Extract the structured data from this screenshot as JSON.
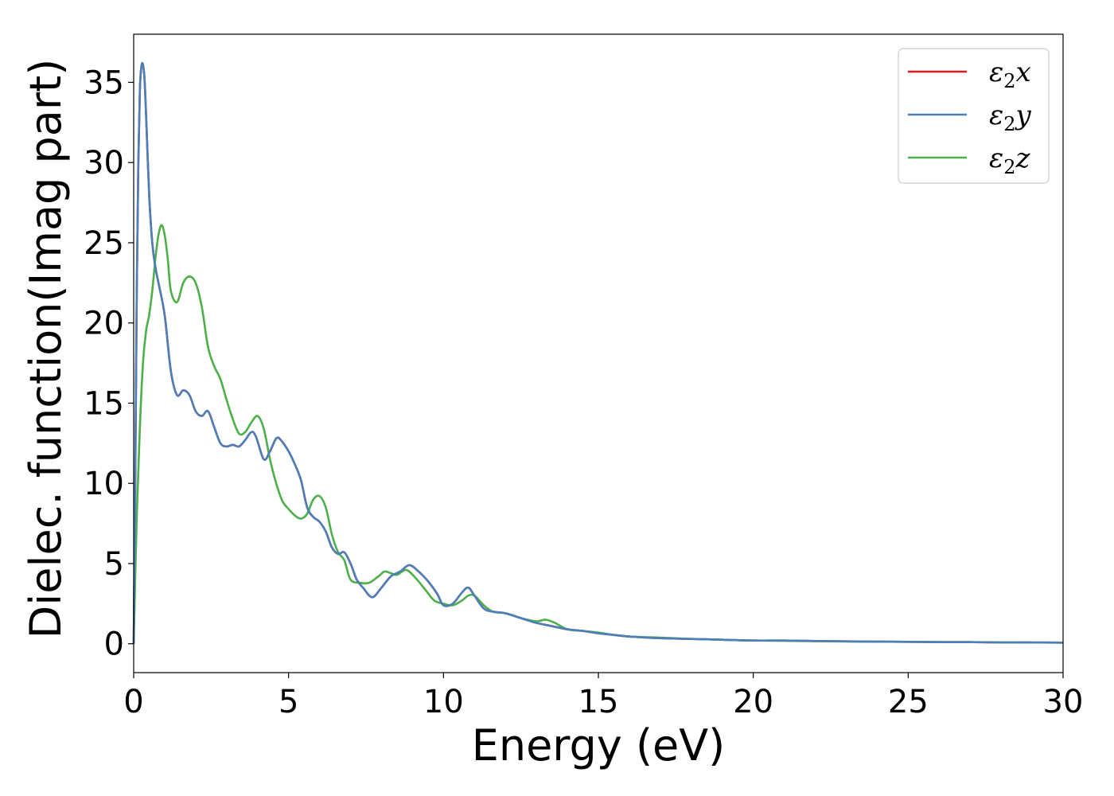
{
  "chart_data": {
    "type": "line",
    "title": "",
    "xlabel": "Energy (eV)",
    "ylabel": "Dielec. function(Imag part)",
    "xlim": [
      0,
      30
    ],
    "ylim": [
      -1.8,
      38
    ],
    "xticks": [
      0,
      5,
      10,
      15,
      20,
      25,
      30
    ],
    "yticks": [
      0,
      5,
      10,
      15,
      20,
      25,
      30,
      35
    ],
    "grid": false,
    "legend_position": "upper-right",
    "series": [
      {
        "name": "ε₂x",
        "label_symbol": "ε",
        "label_sub": "2",
        "label_var": "x",
        "color": "#e41a1c",
        "x": [
          0,
          0.05,
          0.1,
          0.15,
          0.2,
          0.25,
          0.3,
          0.35,
          0.4,
          0.5,
          0.6,
          0.7,
          0.8,
          1.0,
          1.2,
          1.4,
          1.6,
          1.8,
          2.0,
          2.2,
          2.4,
          2.6,
          2.8,
          3.0,
          3.2,
          3.4,
          3.6,
          3.8,
          3.95,
          4.2,
          4.4,
          4.6,
          4.75,
          5.0,
          5.2,
          5.4,
          5.6,
          5.8,
          6.0,
          6.2,
          6.4,
          6.6,
          6.8,
          7.0,
          7.2,
          7.4,
          7.7,
          8.0,
          8.3,
          8.6,
          8.9,
          9.2,
          9.5,
          9.8,
          10.0,
          10.3,
          10.6,
          10.8,
          11.0,
          11.3,
          11.6,
          12.0,
          12.5,
          13.0,
          13.5,
          14.0,
          14.5,
          15.0,
          15.5,
          16.0,
          17.0,
          18.0,
          19.0,
          20.0,
          21.0,
          22.0,
          23.0,
          24.0,
          25.0,
          26.0,
          27.0,
          28.0,
          29.0,
          30.0
        ],
        "y": [
          0,
          10,
          22,
          30,
          34.5,
          36,
          36.1,
          35.2,
          33,
          28,
          25,
          23.5,
          22.5,
          20.5,
          17,
          15.5,
          15.8,
          15.5,
          14.5,
          14.2,
          14.5,
          13.5,
          12.5,
          12.3,
          12.4,
          12.3,
          12.7,
          13.2,
          12.9,
          11.5,
          12,
          12.8,
          12.7,
          12,
          11.2,
          10.2,
          8.5,
          7.9,
          7.6,
          7,
          6,
          5.6,
          5.7,
          5,
          4,
          3.5,
          2.9,
          3.5,
          4.2,
          4.5,
          4.9,
          4.5,
          3.9,
          3.1,
          2.4,
          2.5,
          3.2,
          3.5,
          3.0,
          2.2,
          2.0,
          1.9,
          1.6,
          1.3,
          1.1,
          0.9,
          0.8,
          0.65,
          0.55,
          0.45,
          0.35,
          0.3,
          0.25,
          0.2,
          0.2,
          0.17,
          0.15,
          0.13,
          0.12,
          0.1,
          0.1,
          0.08,
          0.08,
          0.07
        ]
      },
      {
        "name": "ε₂y",
        "label_symbol": "ε",
        "label_sub": "2",
        "label_var": "y",
        "color": "#4a7fba",
        "x": [
          0,
          0.05,
          0.1,
          0.15,
          0.2,
          0.25,
          0.3,
          0.35,
          0.4,
          0.5,
          0.6,
          0.7,
          0.8,
          1.0,
          1.2,
          1.4,
          1.6,
          1.8,
          2.0,
          2.2,
          2.4,
          2.6,
          2.8,
          3.0,
          3.2,
          3.4,
          3.6,
          3.8,
          3.95,
          4.2,
          4.4,
          4.6,
          4.75,
          5.0,
          5.2,
          5.4,
          5.6,
          5.8,
          6.0,
          6.2,
          6.4,
          6.6,
          6.8,
          7.0,
          7.2,
          7.4,
          7.7,
          8.0,
          8.3,
          8.6,
          8.9,
          9.2,
          9.5,
          9.8,
          10.0,
          10.3,
          10.6,
          10.8,
          11.0,
          11.3,
          11.6,
          12.0,
          12.5,
          13.0,
          13.5,
          14.0,
          14.5,
          15.0,
          15.5,
          16.0,
          17.0,
          18.0,
          19.0,
          20.0,
          21.0,
          22.0,
          23.0,
          24.0,
          25.0,
          26.0,
          27.0,
          28.0,
          29.0,
          30.0
        ],
        "y": [
          0,
          10,
          22,
          30,
          34.5,
          36,
          36.1,
          35.2,
          33,
          28,
          25,
          23.5,
          22.5,
          20.5,
          17,
          15.5,
          15.8,
          15.5,
          14.5,
          14.2,
          14.5,
          13.5,
          12.5,
          12.3,
          12.4,
          12.3,
          12.7,
          13.2,
          12.9,
          11.5,
          12,
          12.8,
          12.7,
          12,
          11.2,
          10.2,
          8.5,
          7.9,
          7.6,
          7,
          6,
          5.6,
          5.7,
          5,
          4,
          3.5,
          2.9,
          3.5,
          4.2,
          4.5,
          4.9,
          4.5,
          3.9,
          3.1,
          2.4,
          2.5,
          3.2,
          3.5,
          3.0,
          2.2,
          2.0,
          1.9,
          1.6,
          1.3,
          1.1,
          0.9,
          0.8,
          0.65,
          0.55,
          0.45,
          0.35,
          0.3,
          0.25,
          0.2,
          0.2,
          0.17,
          0.15,
          0.13,
          0.12,
          0.1,
          0.1,
          0.08,
          0.08,
          0.07
        ]
      },
      {
        "name": "ε₂z",
        "label_symbol": "ε",
        "label_sub": "2",
        "label_var": "z",
        "color": "#4daf4a",
        "x": [
          0,
          0.1,
          0.2,
          0.3,
          0.4,
          0.5,
          0.6,
          0.7,
          0.8,
          0.9,
          1.0,
          1.1,
          1.2,
          1.4,
          1.6,
          1.8,
          2.0,
          2.2,
          2.4,
          2.6,
          2.8,
          3.0,
          3.2,
          3.4,
          3.6,
          3.8,
          4.0,
          4.2,
          4.4,
          4.6,
          4.8,
          5.0,
          5.2,
          5.4,
          5.6,
          5.8,
          6.0,
          6.2,
          6.4,
          6.6,
          6.8,
          7.0,
          7.3,
          7.6,
          7.9,
          8.1,
          8.3,
          8.5,
          8.8,
          9.1,
          9.4,
          9.7,
          10.0,
          10.3,
          10.6,
          10.8,
          11.0,
          11.3,
          11.6,
          12.0,
          12.5,
          13.0,
          13.3,
          13.6,
          14.0,
          14.5,
          15.0,
          15.5,
          16.0,
          17.0,
          18.0,
          19.0,
          20.0,
          21.0,
          22.0,
          23.0,
          24.0,
          25.0,
          26.0,
          27.0,
          28.0,
          29.0,
          30.0
        ],
        "y": [
          0,
          8,
          13.5,
          17.5,
          19.5,
          20.5,
          22,
          24,
          25.5,
          26.1,
          25.5,
          24,
          22,
          21.3,
          22.5,
          22.9,
          22.5,
          21,
          18.5,
          17.3,
          16.5,
          15.2,
          14,
          13.1,
          13.2,
          13.8,
          14.2,
          13.4,
          11.5,
          10,
          8.9,
          8.4,
          8.0,
          7.8,
          8.1,
          9.0,
          9.2,
          8.5,
          6.8,
          5.7,
          5.2,
          4.0,
          3.8,
          3.8,
          4.2,
          4.5,
          4.4,
          4.3,
          4.6,
          4.1,
          3.4,
          2.7,
          2.5,
          2.4,
          2.7,
          3.0,
          3.0,
          2.4,
          2.0,
          1.9,
          1.6,
          1.4,
          1.5,
          1.3,
          0.9,
          0.8,
          0.7,
          0.55,
          0.45,
          0.38,
          0.3,
          0.25,
          0.2,
          0.18,
          0.16,
          0.14,
          0.13,
          0.12,
          0.1,
          0.1,
          0.09,
          0.08,
          0.07
        ]
      }
    ]
  }
}
